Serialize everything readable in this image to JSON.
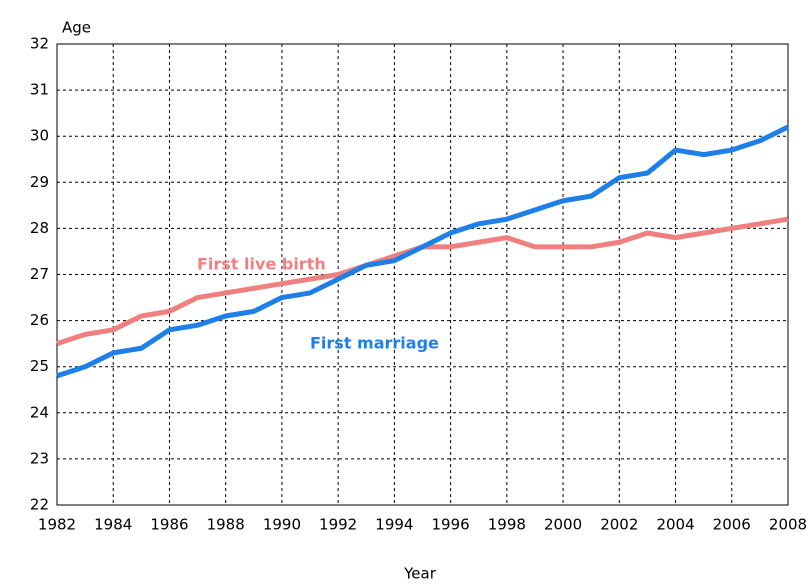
{
  "chart_data": {
    "type": "line",
    "ylabel": "Age",
    "xlabel": "Year",
    "x": [
      1982,
      1983,
      1984,
      1985,
      1986,
      1987,
      1988,
      1989,
      1990,
      1991,
      1992,
      1993,
      1994,
      1995,
      1996,
      1997,
      1998,
      1999,
      2000,
      2001,
      2002,
      2003,
      2004,
      2005,
      2006,
      2007,
      2008
    ],
    "series": [
      {
        "name": "First live birth",
        "color": "#f08080",
        "values": [
          25.5,
          25.7,
          25.8,
          26.1,
          26.2,
          26.5,
          26.6,
          26.7,
          26.8,
          26.9,
          27.0,
          27.2,
          27.4,
          27.6,
          27.6,
          27.7,
          27.8,
          27.6,
          27.6,
          27.6,
          27.7,
          27.9,
          27.8,
          27.9,
          28.0,
          28.1,
          28.2
        ]
      },
      {
        "name": "First marriage",
        "color": "#1e7fe8",
        "values": [
          24.8,
          25.0,
          25.3,
          25.4,
          25.8,
          25.9,
          26.1,
          26.2,
          26.5,
          26.6,
          26.9,
          27.2,
          27.3,
          27.6,
          27.9,
          28.1,
          28.2,
          28.4,
          28.6,
          28.7,
          29.1,
          29.2,
          29.7,
          29.6,
          29.7,
          29.9,
          30.2
        ]
      }
    ],
    "xlim": [
      1982,
      2008
    ],
    "xticks": [
      1982,
      1984,
      1986,
      1988,
      1990,
      1992,
      1994,
      1996,
      1998,
      2000,
      2002,
      2004,
      2006,
      2008
    ],
    "ylim": [
      22,
      32
    ],
    "yticks": [
      22,
      23,
      24,
      25,
      26,
      27,
      28,
      29,
      30,
      31,
      32
    ],
    "grid": true
  }
}
